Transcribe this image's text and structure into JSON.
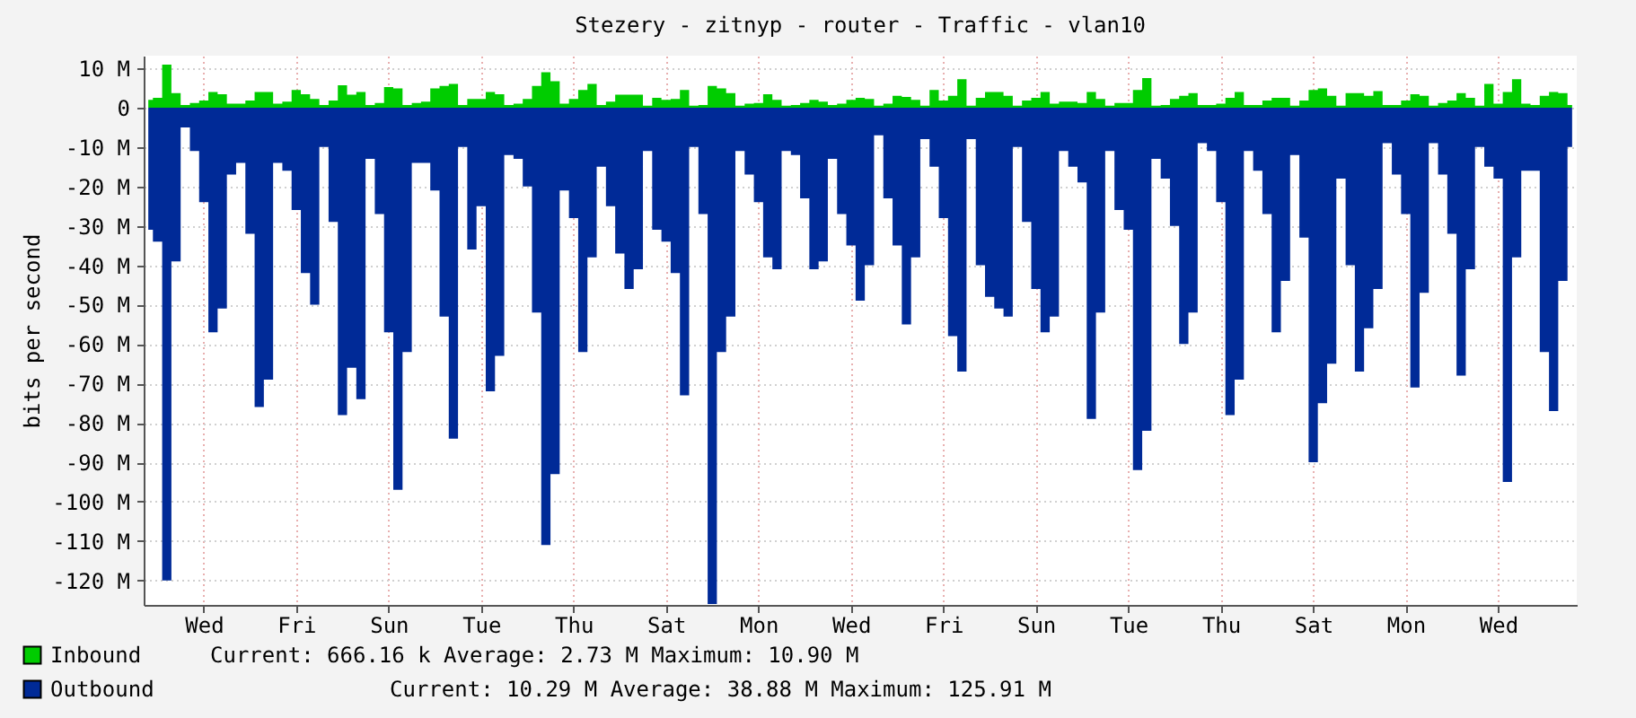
{
  "chart_data": {
    "type": "area",
    "title": "Stezery - zitnyp - router - Traffic - vlan10",
    "ylabel": "bits per second",
    "categories": [
      null,
      null,
      null,
      null,
      null,
      null,
      "Wed",
      null,
      null,
      null,
      null,
      null,
      null,
      null,
      null,
      null,
      "Fri",
      null,
      null,
      null,
      null,
      null,
      null,
      null,
      null,
      null,
      "Sun",
      null,
      null,
      null,
      null,
      null,
      null,
      null,
      null,
      null,
      "Tue",
      null,
      null,
      null,
      null,
      null,
      null,
      null,
      null,
      null,
      "Thu",
      null,
      null,
      null,
      null,
      null,
      null,
      null,
      null,
      null,
      "Sat",
      null,
      null,
      null,
      null,
      null,
      null,
      null,
      null,
      null,
      "Mon",
      null,
      null,
      null,
      null,
      null,
      null,
      null,
      null,
      null,
      "Wed",
      null,
      null,
      null,
      null,
      null,
      null,
      null,
      null,
      null,
      "Fri",
      null,
      null,
      null,
      null,
      null,
      null,
      null,
      null,
      null,
      "Sun",
      null,
      null,
      null,
      null,
      null,
      null,
      null,
      null,
      null,
      "Tue",
      null,
      null,
      null,
      null,
      null,
      null,
      null,
      null,
      null,
      "Thu",
      null,
      null,
      null,
      null,
      null,
      null,
      null,
      null,
      null,
      "Sat",
      null,
      null,
      null,
      null,
      null,
      null,
      null,
      null,
      null,
      "Mon",
      null,
      null,
      null,
      null,
      null,
      null,
      null,
      null,
      null,
      "Wed",
      null,
      null,
      null,
      null,
      null,
      null,
      null,
      null
    ],
    "series": [
      {
        "name": "Inbound",
        "color": "#00cc00",
        "values": [
          2,
          2.5,
          10.9,
          3.7,
          0.7,
          1.2,
          1.8,
          4,
          3.4,
          1,
          1,
          1.8,
          4,
          4,
          1,
          1.5,
          4.5,
          3.4,
          2.2,
          0.7,
          1.8,
          5.7,
          3.3,
          4,
          0.7,
          1.2,
          5.2,
          4.9,
          0.7,
          1.2,
          1.5,
          4.9,
          5.5,
          6,
          0.7,
          2.2,
          2.2,
          4,
          3.4,
          0.7,
          1,
          2.2,
          5.5,
          9,
          6.7,
          1,
          2.2,
          4.5,
          6,
          0.7,
          1.5,
          3.3,
          3.3,
          3.3,
          0.5,
          2.5,
          2,
          2.2,
          4.5,
          0.5,
          0.7,
          5.5,
          4.9,
          3.7,
          0.5,
          1,
          1.2,
          3.4,
          2,
          0.5,
          0.7,
          1.2,
          2,
          1.5,
          0.7,
          1,
          2,
          2.5,
          2.2,
          0.5,
          1,
          3,
          2.7,
          2,
          0.5,
          4.5,
          1.8,
          3,
          7.2,
          0.5,
          2.5,
          4,
          4,
          3,
          0.5,
          1.8,
          2.5,
          4,
          1,
          1.5,
          1.5,
          1.2,
          4,
          2.2,
          0.5,
          1.2,
          1.2,
          4.5,
          7.5,
          0.5,
          0.7,
          2.2,
          3,
          3.7,
          0.7,
          0.7,
          1,
          2.5,
          4,
          0.7,
          0.7,
          1.8,
          2.5,
          2.5,
          0.5,
          1.8,
          4.5,
          4.9,
          3,
          0.5,
          3.7,
          3.7,
          3,
          4.2,
          0.7,
          0.7,
          1.8,
          3.4,
          3,
          0.5,
          1.2,
          1.8,
          3.7,
          2.5,
          0.5,
          6,
          1,
          4,
          7.2,
          1,
          0.7,
          3,
          4,
          3.7,
          0.7
        ]
      },
      {
        "name": "Outbound",
        "color": "#002a97",
        "values": [
          -31,
          -34,
          -120,
          -39,
          -5,
          -11,
          -24,
          -57,
          -51,
          -17,
          -14,
          -32,
          -76,
          -69,
          -14,
          -16,
          -26,
          -42,
          -50,
          -10,
          -29,
          -78,
          -66,
          -74,
          -13,
          -27,
          -57,
          -97,
          -62,
          -14,
          -14,
          -21,
          -53,
          -84,
          -10,
          -36,
          -25,
          -72,
          -63,
          -12,
          -13,
          -20,
          -52,
          -111,
          -93,
          -21,
          -28,
          -62,
          -38,
          -15,
          -25,
          -37,
          -46,
          -41,
          -11,
          -31,
          -34,
          -42,
          -73,
          -10,
          -27,
          -126,
          -62,
          -53,
          -11,
          -17,
          -24,
          -38,
          -41,
          -11,
          -12,
          -23,
          -41,
          -39,
          -13,
          -27,
          -35,
          -49,
          -40,
          -7,
          -23,
          -35,
          -55,
          -38,
          -8,
          -15,
          -28,
          -58,
          -67,
          -8,
          -40,
          -48,
          -51,
          -53,
          -10,
          -29,
          -46,
          -57,
          -53,
          -11,
          -15,
          -19,
          -79,
          -52,
          -11,
          -26,
          -31,
          -92,
          -82,
          -13,
          -18,
          -30,
          -60,
          -52,
          -9,
          -11,
          -24,
          -78,
          -69,
          -11,
          -16,
          -27,
          -57,
          -44,
          -12,
          -33,
          -90,
          -75,
          -65,
          -18,
          -40,
          -67,
          -56,
          -46,
          -9,
          -17,
          -27,
          -71,
          -47,
          -9,
          -17,
          -32,
          -68,
          -41,
          -10,
          -15,
          -18,
          -95,
          -38,
          -16,
          -16,
          -62,
          -77,
          -44,
          -10
        ]
      }
    ],
    "ylim": [
      -126.2,
      13.2
    ],
    "yticks": [
      {
        "value": 10,
        "label": "10 M"
      },
      0,
      {
        "value": -10,
        "label": "-10 M"
      },
      {
        "value": -20,
        "label": "-20 M"
      },
      {
        "value": -30,
        "label": "-30 M"
      },
      {
        "value": -40,
        "label": "-40 M"
      },
      {
        "value": -50,
        "label": "-50 M"
      },
      {
        "value": -60,
        "label": "-60 M"
      },
      {
        "value": -70,
        "label": "-70 M"
      },
      {
        "value": -80,
        "label": "-80 M"
      },
      {
        "value": -90,
        "label": "-90 M"
      },
      {
        "value": -100,
        "label": "-100 M"
      },
      {
        "value": -110,
        "label": "-110 M"
      },
      {
        "value": -120,
        "label": "-120 M"
      }
    ],
    "grid": true,
    "legend": "bottom",
    "annotations": [
      "Current:  666.16 k   Average:    2.73 M   Maximum:   10.90 M",
      "Current:   10.29 M          Average:   38.88 M          Maximum:  125.91 M"
    ]
  }
}
